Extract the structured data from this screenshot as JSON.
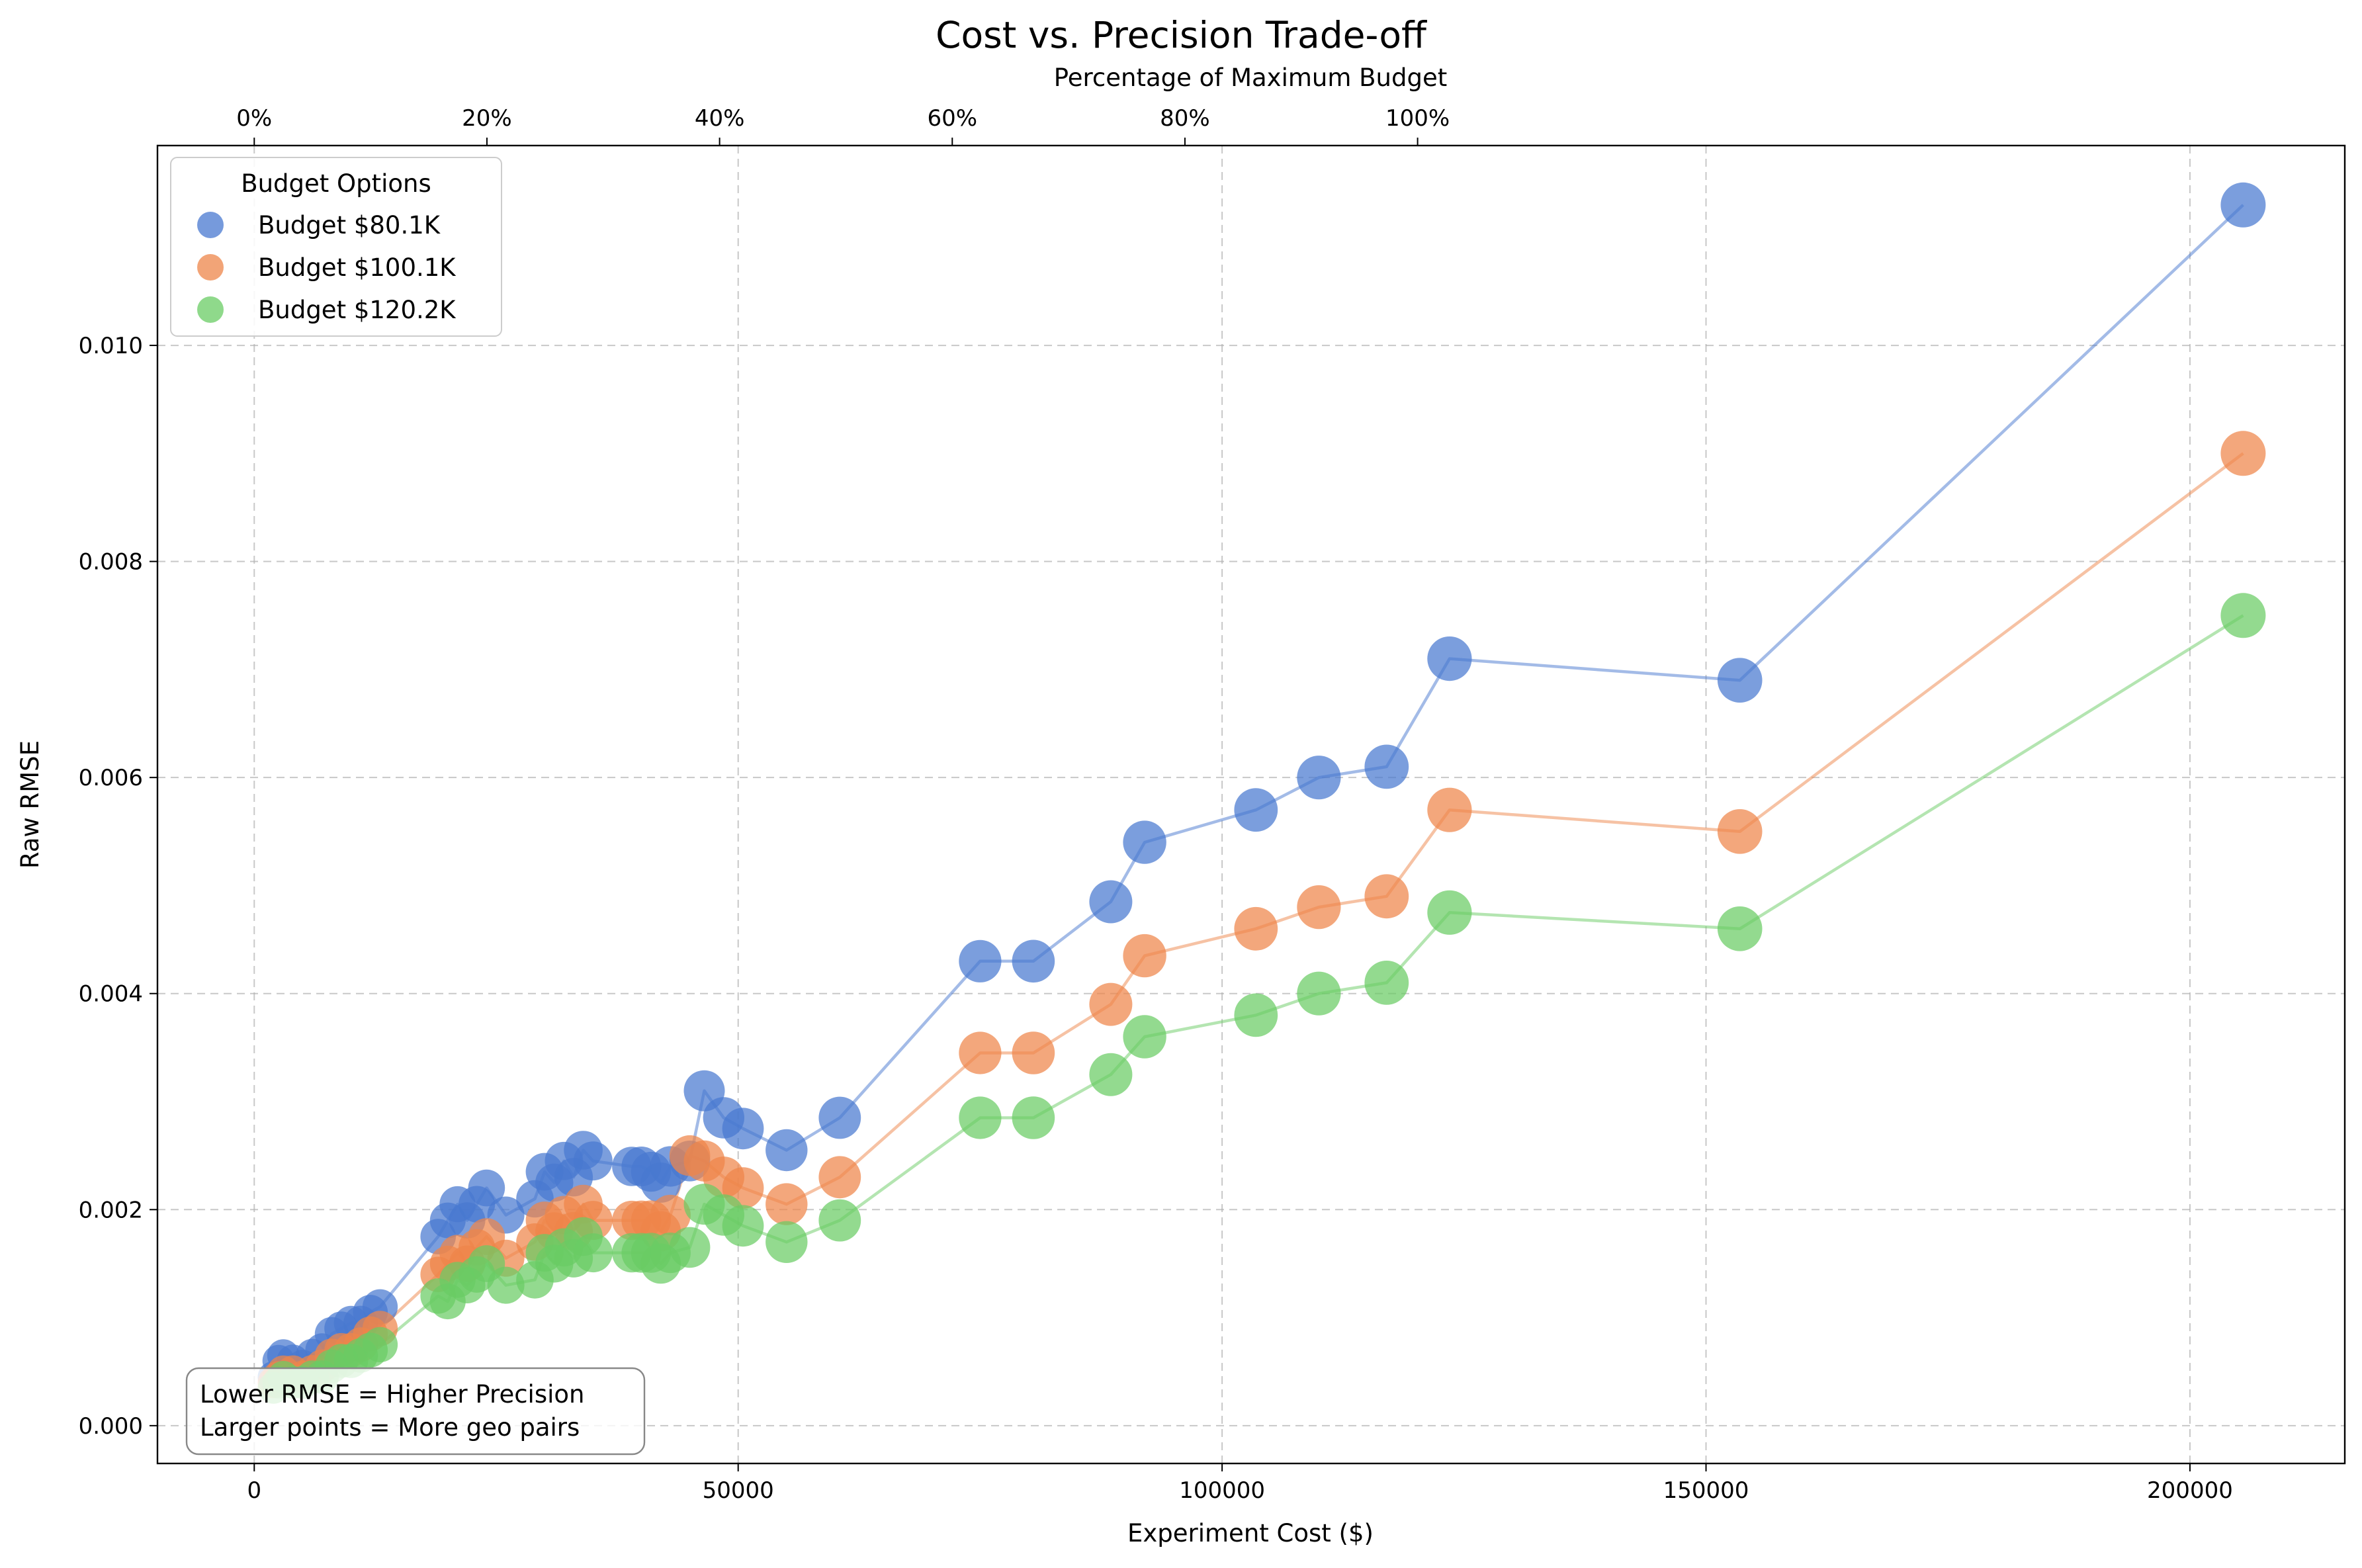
{
  "chart_data": {
    "type": "scatter",
    "title": "Cost vs. Precision Trade-off",
    "xlabel": "Experiment Cost ($)",
    "ylabel": "Raw RMSE",
    "top_axis_label": "Percentage of Maximum Budget",
    "xlim": [
      -10000,
      216000
    ],
    "ylim": [
      -0.00035,
      0.01185
    ],
    "x_ticks": [
      0,
      50000,
      100000,
      150000,
      200000
    ],
    "x_tick_labels": [
      "0",
      "50000",
      "100000",
      "150000",
      "200000"
    ],
    "y_ticks": [
      0.0,
      0.002,
      0.004,
      0.006,
      0.008,
      0.01
    ],
    "y_tick_labels": [
      "0.000",
      "0.002",
      "0.004",
      "0.006",
      "0.008",
      "0.010"
    ],
    "top_ticks": [
      0,
      20,
      40,
      60,
      80,
      100
    ],
    "top_tick_labels": [
      "0%",
      "20%",
      "40%",
      "60%",
      "80%",
      "100%"
    ],
    "top_axis_max_cost": 120200,
    "grid": true,
    "legend": {
      "title": "Budget Options",
      "placement": "top-left"
    },
    "annotation": [
      "Lower RMSE = Higher Precision",
      "Larger points = More geo pairs"
    ],
    "annotation_placement": "bottom-left",
    "x": [
      2000,
      2500,
      3000,
      4000,
      5000,
      6000,
      7000,
      8000,
      9000,
      10000,
      11000,
      12000,
      13000,
      19000,
      20000,
      21000,
      22000,
      23000,
      24000,
      26000,
      29000,
      30000,
      31000,
      32000,
      33000,
      34000,
      35000,
      39000,
      40000,
      41000,
      42000,
      43000,
      45000,
      46500,
      48500,
      50500,
      55000,
      60500,
      75000,
      80500,
      88500,
      92000,
      103500,
      110000,
      117000,
      123500,
      153500,
      205500
    ],
    "series": [
      {
        "name": "Budget $80.1K",
        "color": "#4878d0",
        "values": [
          0.00045,
          0.0006,
          0.00065,
          0.0006,
          0.00055,
          0.00065,
          0.0007,
          0.00085,
          0.0009,
          0.00095,
          0.00095,
          0.00105,
          0.0011,
          0.00175,
          0.0019,
          0.00205,
          0.0019,
          0.00205,
          0.0022,
          0.00195,
          0.0021,
          0.00235,
          0.00225,
          0.00245,
          0.0023,
          0.00255,
          0.00245,
          0.0024,
          0.0024,
          0.00235,
          0.00225,
          0.0024,
          0.00245,
          0.0031,
          0.00285,
          0.00275,
          0.00255,
          0.00285,
          0.0043,
          0.0043,
          0.00485,
          0.0054,
          0.0057,
          0.006,
          0.0061,
          0.0071,
          0.0069,
          0.0113
        ]
      },
      {
        "name": "Budget $100.1K",
        "color": "#ee854a",
        "values": [
          0.0004,
          0.00045,
          0.0005,
          0.0005,
          0.00045,
          0.0005,
          0.00055,
          0.00065,
          0.0007,
          0.0007,
          0.00075,
          0.00085,
          0.0009,
          0.0014,
          0.0015,
          0.0016,
          0.0015,
          0.00165,
          0.00175,
          0.00155,
          0.0017,
          0.0019,
          0.0018,
          0.00195,
          0.0018,
          0.00205,
          0.0019,
          0.0019,
          0.0019,
          0.0019,
          0.0018,
          0.00195,
          0.0025,
          0.00245,
          0.0023,
          0.0022,
          0.00205,
          0.0023,
          0.00345,
          0.00345,
          0.0039,
          0.00435,
          0.0046,
          0.0048,
          0.0049,
          0.0057,
          0.0055,
          0.009
        ]
      },
      {
        "name": "Budget $120.2K",
        "color": "#6acc64",
        "values": [
          0.00035,
          0.0004,
          0.00045,
          0.0004,
          0.0004,
          0.00045,
          0.00045,
          0.00055,
          0.0006,
          0.0006,
          0.00065,
          0.0007,
          0.00075,
          0.0012,
          0.00115,
          0.00135,
          0.0013,
          0.0014,
          0.0015,
          0.0013,
          0.00135,
          0.0016,
          0.0015,
          0.00165,
          0.00155,
          0.00175,
          0.0016,
          0.0016,
          0.0016,
          0.0016,
          0.0015,
          0.0016,
          0.00165,
          0.00205,
          0.00195,
          0.00185,
          0.0017,
          0.0019,
          0.00285,
          0.00285,
          0.00325,
          0.0036,
          0.0038,
          0.004,
          0.0041,
          0.00475,
          0.0046,
          0.0075
        ]
      }
    ]
  }
}
